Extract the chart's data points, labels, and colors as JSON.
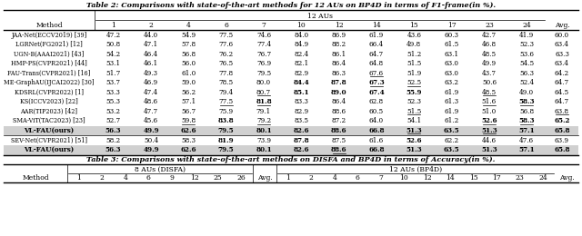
{
  "title2": "Table 2: Comparisons with state-of-the-art methods for 12 AUs on BP4D in terms of F1-frame(in %).",
  "title3": "Table 3: Comparisons with state-of-the-art methods on DISFA and BP4D in terms of Accuracy(in %).",
  "t2_au_header": "12 AUs",
  "t2_col_nums": [
    "1",
    "2",
    "4",
    "6",
    "7",
    "10",
    "12",
    "14",
    "15",
    "17",
    "23",
    "24"
  ],
  "t2_avg_label": "Avg.",
  "t2_method_label": "Method",
  "t2_rows": [
    [
      "JAA-Net",
      "ECCV2019",
      " [39]",
      "47.2",
      "44.0",
      "54.9",
      "77.5",
      "74.6",
      "84.0",
      "86.9",
      "61.9",
      "43.6",
      "60.3",
      "42.7",
      "41.9",
      "60.0"
    ],
    [
      "LGRNet",
      "FG2021",
      " [12]",
      "50.8",
      "47.1",
      "57.8",
      "77.6",
      "77.4",
      "84.9",
      "88.2",
      "66.4",
      "49.8",
      "61.5",
      "46.8",
      "52.3",
      "63.4"
    ],
    [
      "UGN-B",
      "AAAI2021",
      " [43]",
      "54.2",
      "46.4",
      "56.8",
      "76.2",
      "76.7",
      "82.4",
      "86.1",
      "64.7",
      "51.2",
      "63.1",
      "48.5",
      "53.6",
      "63.3"
    ],
    [
      "HMP-PS",
      "CVPR2021",
      " [44]",
      "53.1",
      "46.1",
      "56.0",
      "76.5",
      "76.9",
      "82.1",
      "86.4",
      "64.8",
      "51.5",
      "63.0",
      "49.9",
      "54.5",
      "63.4"
    ],
    [
      "FAU-Trans",
      "CVPR2021",
      " [16]",
      "51.7",
      "49.3",
      "61.0",
      "77.8",
      "79.5",
      "82.9",
      "86.3",
      "67.6",
      "51.9",
      "63.0",
      "43.7",
      "56.3",
      "64.2"
    ],
    [
      "ME-GraphAU",
      "IJCAI2022",
      " [30]",
      "53.7",
      "46.9",
      "59.0",
      "78.5",
      "80.0",
      "84.4",
      "87.8",
      "67.3",
      "52.5",
      "63.2",
      "50.6",
      "52.4",
      "64.7"
    ],
    [
      "KDSRL",
      "CVPR2022",
      " [1]",
      "53.3",
      "47.4",
      "56.2",
      "79.4",
      "80.7",
      "85.1",
      "89.0",
      "67.4",
      "55.9",
      "61.9",
      "48.5",
      "49.0",
      "64.5"
    ],
    [
      "KS",
      "ICCV2023",
      " [22]",
      "55.3",
      "48.6",
      "57.1",
      "77.5",
      "81.8",
      "83.3",
      "86.4",
      "62.8",
      "52.3",
      "61.3",
      "51.6",
      "58.3",
      "64.7"
    ],
    [
      "AAR",
      "TIP2023",
      " [42]",
      "53.2",
      "47.7",
      "56.7",
      "75.9",
      "79.1",
      "82.9",
      "88.6",
      "60.5",
      "51.5",
      "61.9",
      "51.0",
      "56.8",
      "63.8"
    ],
    [
      "SMA-ViT",
      "TAC2023",
      " [23]",
      "52.7",
      "45.6",
      "59.8",
      "83.8",
      "79.2",
      "83.5",
      "87.2",
      "64.0",
      "54.1",
      "61.2",
      "52.6",
      "58.3",
      "65.2"
    ],
    [
      "VL-FAU(ours)",
      "",
      "",
      "56.3",
      "49.9",
      "62.6",
      "79.5",
      "80.1",
      "82.6",
      "88.6",
      "66.8",
      "51.3",
      "63.5",
      "51.3",
      "57.1",
      "65.8"
    ]
  ],
  "t2_sep_rows": [
    [
      "SEV-Net",
      "CVPR2021",
      " [51]",
      "58.2",
      "50.4",
      "58.3",
      "81.9",
      "73.9",
      "87.8",
      "87.5",
      "61.6",
      "52.6",
      "62.2",
      "44.6",
      "47.6",
      "63.9"
    ],
    [
      "VL-FAU(ours)",
      "",
      "",
      "56.3",
      "49.9",
      "62.6",
      "79.5",
      "80.1",
      "82.6",
      "88.6",
      "66.8",
      "51.3",
      "63.5",
      "51.3",
      "57.1",
      "65.8"
    ]
  ],
  "t2_bold": {
    "5": [
      6,
      7,
      8
    ],
    "6": [
      5,
      6,
      7,
      8
    ],
    "7": [
      5,
      6
    ],
    "8": [
      4,
      11,
      12,
      13
    ],
    "9": [
      3,
      5,
      8,
      11,
      12,
      13
    ]
  },
  "t2_underline": {
    "7": [
      3
    ],
    "5": [
      8
    ],
    "6": [
      8,
      9
    ],
    "7u": [
      5,
      12
    ],
    "8u": [
      5,
      8,
      12,
      13
    ],
    "9u": [
      9,
      13
    ],
    "10u": [
      3,
      5,
      12,
      13
    ],
    "11u": [
      10,
      12
    ]
  },
  "t2_sep_bold": {
    "0": [
      4,
      5,
      6,
      10
    ],
    "1": [
      4,
      5,
      6,
      7,
      8,
      9,
      10,
      11,
      12,
      13
    ]
  },
  "t2_sep_underline": {
    "1": [
      8
    ]
  },
  "t3_disfa_header": "8 AUs (DISFA)",
  "t3_bp4d_header": "12 AUs (BP4D)",
  "t3_disfa_nums": [
    "1",
    "2",
    "4",
    "6",
    "9",
    "12",
    "25",
    "26"
  ],
  "t3_bp4d_nums": [
    "1",
    "2",
    "4",
    "6",
    "7",
    "10",
    "12",
    "14",
    "15",
    "17",
    "23",
    "24"
  ],
  "t3_avg_label": "Avg.",
  "t3_method_label": "Method",
  "highlight_color": "#D0D0D0",
  "bg_color": "#FFFFFF"
}
